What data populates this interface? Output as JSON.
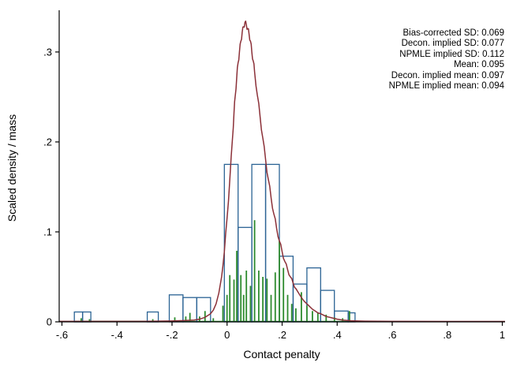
{
  "chart_data": {
    "type": "bar",
    "subtype": "histogram_with_mass_spikes_and_density_curve",
    "title": "",
    "xlabel": "Contact penalty",
    "ylabel": "Scaled density / mass",
    "xlim": [
      -0.61,
      1.01
    ],
    "ylim": [
      0,
      0.342
    ],
    "x_ticks": [
      {
        "v": -0.6,
        "label": "-.6"
      },
      {
        "v": -0.4,
        "label": "-.4"
      },
      {
        "v": -0.2,
        "label": "-.2"
      },
      {
        "v": 0,
        "label": "0"
      },
      {
        "v": 0.2,
        "label": ".2"
      },
      {
        "v": 0.4,
        "label": ".4"
      },
      {
        "v": 0.6,
        "label": ".6"
      },
      {
        "v": 0.8,
        "label": ".8"
      },
      {
        "v": 1,
        "label": "1"
      }
    ],
    "y_ticks": [
      {
        "v": 0,
        "label": "0"
      },
      {
        "v": 0.1,
        "label": ".1"
      },
      {
        "v": 0.2,
        "label": ".2"
      },
      {
        "v": 0.3,
        "label": ".3"
      }
    ],
    "colors": {
      "histogram": "#2b6394",
      "spikes": "#2e8b2e",
      "density": "#8b3038",
      "axis": "#000000",
      "background": "#ffffff"
    },
    "histogram_bars": [
      [
        -0.555,
        -0.525,
        0.011
      ],
      [
        -0.525,
        -0.495,
        0.011
      ],
      [
        -0.29,
        -0.25,
        0.011
      ],
      [
        -0.21,
        -0.16,
        0.03
      ],
      [
        -0.16,
        -0.11,
        0.027
      ],
      [
        -0.11,
        -0.06,
        0.027
      ],
      [
        -0.01,
        0.04,
        0.175
      ],
      [
        0.04,
        0.09,
        0.105
      ],
      [
        0.09,
        0.14,
        0.175
      ],
      [
        0.14,
        0.19,
        0.175
      ],
      [
        0.19,
        0.24,
        0.073
      ],
      [
        0.24,
        0.29,
        0.042
      ],
      [
        0.29,
        0.34,
        0.06
      ],
      [
        0.34,
        0.39,
        0.035
      ],
      [
        0.39,
        0.44,
        0.012
      ],
      [
        0.44,
        0.465,
        0.01
      ]
    ],
    "spike_baseline": [
      -0.555,
      0.465
    ],
    "spikes": [
      [
        -0.53,
        0.004
      ],
      [
        -0.5,
        0.003
      ],
      [
        -0.27,
        0.003
      ],
      [
        -0.19,
        0.005
      ],
      [
        -0.15,
        0.006
      ],
      [
        -0.135,
        0.01
      ],
      [
        -0.1,
        0.006
      ],
      [
        -0.08,
        0.012
      ],
      [
        -0.05,
        0.004
      ],
      [
        -0.015,
        0.018
      ],
      [
        0.0,
        0.03
      ],
      [
        0.01,
        0.052
      ],
      [
        0.025,
        0.047
      ],
      [
        0.035,
        0.079
      ],
      [
        0.05,
        0.052
      ],
      [
        0.06,
        0.03
      ],
      [
        0.07,
        0.057
      ],
      [
        0.085,
        0.04
      ],
      [
        0.1,
        0.113
      ],
      [
        0.115,
        0.057
      ],
      [
        0.13,
        0.05
      ],
      [
        0.145,
        0.048
      ],
      [
        0.16,
        0.03
      ],
      [
        0.175,
        0.055
      ],
      [
        0.19,
        0.09
      ],
      [
        0.205,
        0.06
      ],
      [
        0.22,
        0.03
      ],
      [
        0.235,
        0.02
      ],
      [
        0.25,
        0.015
      ],
      [
        0.27,
        0.033
      ],
      [
        0.29,
        0.018
      ],
      [
        0.31,
        0.012
      ],
      [
        0.33,
        0.01
      ],
      [
        0.36,
        0.008
      ],
      [
        0.39,
        0.005
      ],
      [
        0.42,
        0.004
      ],
      [
        0.445,
        0.012
      ]
    ],
    "density_curve": [
      [
        -0.61,
        0.0005
      ],
      [
        -0.3,
        0.0005
      ],
      [
        -0.2,
        0.001
      ],
      [
        -0.15,
        0.0015
      ],
      [
        -0.12,
        0.002
      ],
      [
        -0.1,
        0.003
      ],
      [
        -0.08,
        0.005
      ],
      [
        -0.06,
        0.009
      ],
      [
        -0.05,
        0.013
      ],
      [
        -0.04,
        0.02
      ],
      [
        -0.03,
        0.032
      ],
      [
        -0.02,
        0.05
      ],
      [
        -0.01,
        0.078
      ],
      [
        0.0,
        0.115
      ],
      [
        0.01,
        0.158
      ],
      [
        0.02,
        0.205
      ],
      [
        0.025,
        0.232
      ],
      [
        0.03,
        0.252
      ],
      [
        0.035,
        0.272
      ],
      [
        0.04,
        0.288
      ],
      [
        0.045,
        0.3
      ],
      [
        0.05,
        0.312
      ],
      [
        0.055,
        0.322
      ],
      [
        0.06,
        0.328
      ],
      [
        0.065,
        0.333
      ],
      [
        0.07,
        0.33
      ],
      [
        0.075,
        0.326
      ],
      [
        0.08,
        0.32
      ],
      [
        0.085,
        0.312
      ],
      [
        0.09,
        0.3
      ],
      [
        0.095,
        0.29
      ],
      [
        0.1,
        0.278
      ],
      [
        0.11,
        0.252
      ],
      [
        0.12,
        0.228
      ],
      [
        0.13,
        0.204
      ],
      [
        0.14,
        0.18
      ],
      [
        0.15,
        0.158
      ],
      [
        0.16,
        0.138
      ],
      [
        0.17,
        0.12
      ],
      [
        0.18,
        0.104
      ],
      [
        0.19,
        0.09
      ],
      [
        0.2,
        0.078
      ],
      [
        0.21,
        0.067
      ],
      [
        0.22,
        0.058
      ],
      [
        0.23,
        0.05
      ],
      [
        0.24,
        0.043
      ],
      [
        0.25,
        0.037
      ],
      [
        0.26,
        0.032
      ],
      [
        0.27,
        0.027
      ],
      [
        0.28,
        0.023
      ],
      [
        0.29,
        0.02
      ],
      [
        0.3,
        0.017
      ],
      [
        0.31,
        0.014
      ],
      [
        0.32,
        0.012
      ],
      [
        0.33,
        0.01
      ],
      [
        0.34,
        0.009
      ],
      [
        0.35,
        0.0075
      ],
      [
        0.36,
        0.006
      ],
      [
        0.38,
        0.0045
      ],
      [
        0.4,
        0.003
      ],
      [
        0.42,
        0.002
      ],
      [
        0.45,
        0.0012
      ],
      [
        0.5,
        0.0008
      ],
      [
        0.6,
        0.0005
      ],
      [
        0.8,
        0.0004
      ],
      [
        1.01,
        0.0004
      ]
    ],
    "annotations": [
      "Bias-corrected SD: 0.069",
      "Decon. implied SD: 0.077",
      "NPMLE implied SD: 0.112",
      "Mean: 0.095",
      "Decon. implied mean: 0.097",
      "NPMLE implied mean: 0.094"
    ]
  }
}
